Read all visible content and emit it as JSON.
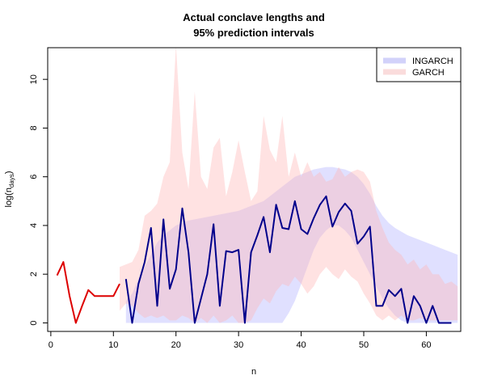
{
  "chart_data": {
    "type": "line",
    "title_line1": "Actual conclave lengths and",
    "title_line2": "95% prediction intervals",
    "xlabel": "n",
    "ylabel_main": "log(n",
    "ylabel_sub": "days",
    "ylabel_close": ")",
    "xlim": [
      -0.5,
      65.5
    ],
    "ylim": [
      -0.35,
      11.3
    ],
    "xticks": [
      0,
      10,
      20,
      30,
      40,
      50,
      60
    ],
    "yticks": [
      0,
      2,
      4,
      6,
      8,
      10
    ],
    "legend_position": "top-right",
    "legend": [
      {
        "label": "INGARCH",
        "color": "#d2d2fa"
      },
      {
        "label": "GARCH",
        "color": "#fadcdc"
      }
    ],
    "colors": {
      "history": "#dd0000",
      "actual": "#00008b",
      "ingarch_band": "#d6d6ff",
      "garch_band": "#ffb4b4"
    },
    "history": {
      "x": [
        1,
        2,
        3,
        4,
        5,
        6,
        7,
        8,
        9,
        10,
        11
      ],
      "y": [
        1.95,
        2.5,
        1.1,
        0.0,
        0.7,
        1.35,
        1.1,
        1.1,
        1.1,
        1.1,
        1.6
      ]
    },
    "actual": {
      "x": [
        12,
        13,
        14,
        15,
        16,
        17,
        18,
        19,
        20,
        21,
        22,
        23,
        24,
        25,
        26,
        27,
        28,
        29,
        30,
        31,
        32,
        33,
        34,
        35,
        36,
        37,
        38,
        39,
        40,
        41,
        42,
        43,
        44,
        45,
        46,
        47,
        48,
        49,
        50,
        51,
        52,
        53,
        54,
        55,
        56,
        57,
        58,
        59,
        60,
        61,
        62,
        63,
        64
      ],
      "y": [
        1.8,
        0.0,
        1.6,
        2.5,
        3.9,
        0.7,
        4.25,
        1.4,
        2.2,
        4.7,
        2.9,
        0.0,
        1.0,
        2.0,
        4.05,
        0.7,
        2.95,
        2.9,
        3.0,
        0.0,
        2.9,
        3.6,
        4.35,
        2.9,
        4.85,
        3.9,
        3.85,
        5.0,
        3.85,
        3.65,
        4.3,
        4.85,
        5.2,
        3.95,
        4.55,
        4.9,
        4.6,
        3.25,
        3.55,
        3.95,
        0.7,
        0.7,
        1.35,
        1.1,
        1.4,
        0.0,
        1.1,
        0.7,
        0.0,
        0.7,
        0.0,
        0.0,
        0.0
      ]
    },
    "ingarch_band": {
      "x": [
        12,
        13,
        14,
        15,
        16,
        17,
        18,
        19,
        20,
        21,
        22,
        23,
        24,
        25,
        26,
        27,
        28,
        29,
        30,
        31,
        32,
        33,
        34,
        35,
        36,
        37,
        38,
        39,
        40,
        41,
        42,
        43,
        44,
        45,
        46,
        47,
        48,
        49,
        50,
        51,
        52,
        53,
        54,
        55,
        56,
        57,
        58,
        59,
        60,
        61,
        62,
        63,
        64,
        65
      ],
      "lower": [
        0,
        0,
        0,
        0,
        0,
        0,
        0,
        0,
        0,
        0,
        0,
        0,
        0,
        0,
        0,
        0,
        0,
        0,
        0,
        0,
        0,
        0,
        0,
        0,
        0,
        0,
        0.4,
        0.9,
        1.6,
        2.3,
        3.0,
        3.5,
        3.8,
        4.0,
        4.0,
        3.8,
        3.5,
        3.0,
        2.5,
        2.0,
        1.5,
        1.0,
        0.6,
        0.3,
        0.1,
        0,
        0,
        0,
        0,
        0,
        0,
        0,
        0,
        0
      ],
      "upper": [
        0.9,
        1.2,
        1.8,
        2.3,
        2.8,
        3.3,
        3.6,
        3.8,
        4.0,
        4.1,
        4.2,
        4.25,
        4.3,
        4.35,
        4.4,
        4.45,
        4.5,
        4.55,
        4.6,
        4.7,
        4.8,
        4.9,
        5.0,
        5.2,
        5.4,
        5.6,
        5.8,
        6.0,
        6.1,
        6.2,
        6.3,
        6.35,
        6.4,
        6.4,
        6.35,
        6.3,
        6.2,
        6.0,
        5.7,
        5.3,
        4.8,
        4.4,
        4.1,
        3.9,
        3.75,
        3.6,
        3.5,
        3.4,
        3.3,
        3.2,
        3.1,
        3.0,
        2.9,
        2.8
      ]
    },
    "garch_band": {
      "x": [
        11,
        12,
        13,
        14,
        15,
        16,
        17,
        18,
        19,
        20,
        21,
        22,
        23,
        24,
        25,
        26,
        27,
        28,
        29,
        30,
        31,
        32,
        33,
        34,
        35,
        36,
        37,
        38,
        39,
        40,
        41,
        42,
        43,
        44,
        45,
        46,
        47,
        48,
        49,
        50,
        51,
        52,
        53,
        54,
        55,
        56,
        57,
        58,
        59,
        60,
        61,
        62,
        63,
        64,
        65
      ],
      "lower": [
        0.5,
        0.8,
        0.7,
        0.4,
        0.2,
        0.3,
        0.2,
        0.3,
        0.1,
        0.1,
        0.3,
        0.2,
        0,
        0.2,
        0,
        0.3,
        0,
        0.1,
        0.3,
        0,
        0,
        0.1,
        0.6,
        1.0,
        0.8,
        1.3,
        1.6,
        1.5,
        1.9,
        1.6,
        1.2,
        1.5,
        2.0,
        2.3,
        2.0,
        1.8,
        2.2,
        1.9,
        1.7,
        1.2,
        0.8,
        0.3,
        0.1,
        0.3,
        0.1,
        0.3,
        0.1,
        0.1,
        0.2,
        0.1,
        0.1,
        0.1,
        0.1,
        0.1,
        0.1
      ],
      "upper": [
        2.3,
        2.4,
        2.5,
        3.0,
        4.4,
        4.6,
        4.9,
        6.0,
        6.6,
        11.4,
        7.0,
        5.5,
        9.5,
        6.0,
        5.5,
        7.2,
        7.6,
        5.2,
        6.2,
        7.5,
        6.2,
        5.0,
        5.4,
        8.5,
        7.1,
        6.6,
        8.5,
        6.0,
        7.0,
        6.0,
        6.6,
        6.0,
        6.2,
        5.8,
        5.9,
        6.4,
        6.0,
        6.2,
        6.3,
        6.2,
        5.8,
        4.6,
        3.9,
        3.3,
        3.0,
        2.8,
        2.4,
        2.6,
        2.2,
        2.4,
        2.0,
        2.0,
        1.6,
        1.7,
        1.5
      ]
    }
  }
}
